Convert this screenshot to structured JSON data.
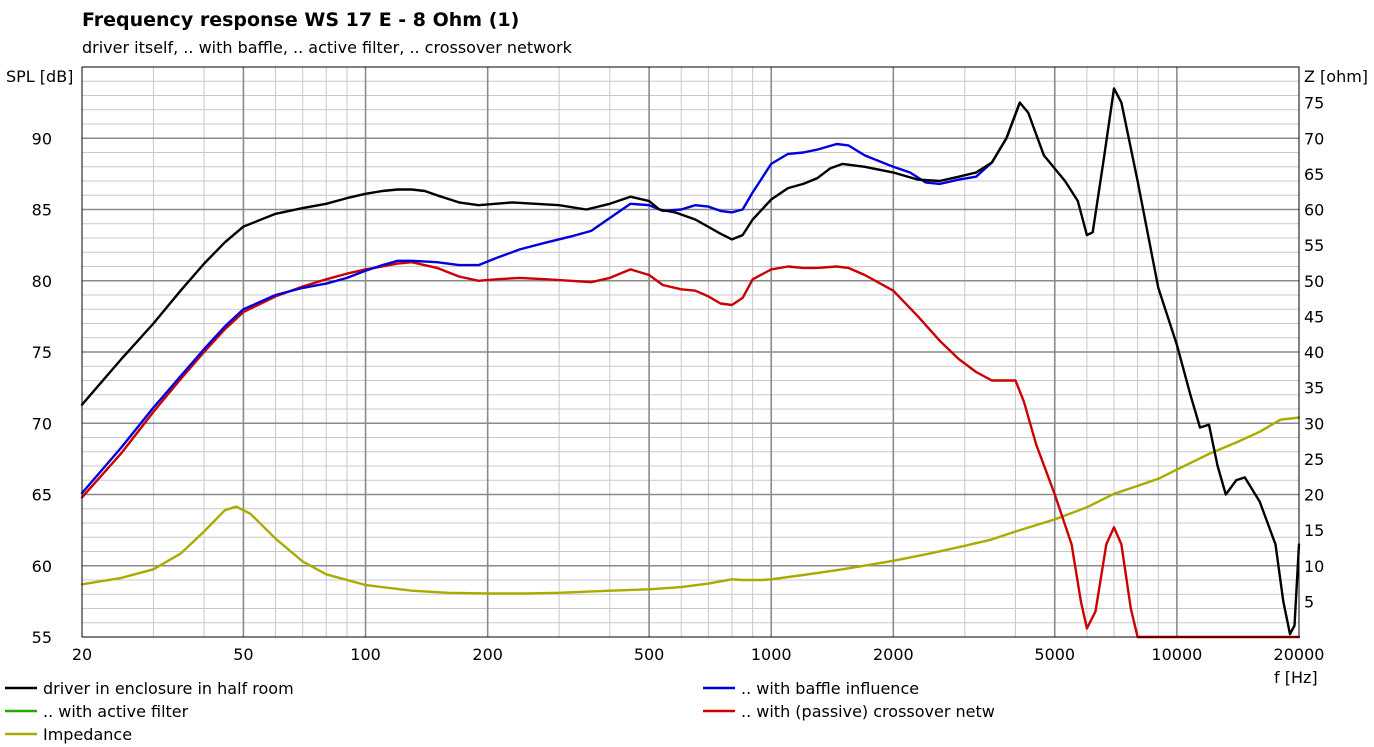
{
  "chart_data": {
    "type": "line",
    "title": "Frequency response WS 17 E - 8 Ohm   (1)",
    "subtitle": "driver itself, .. with baffle, .. active filter, .. crossover network",
    "ylabel": "SPL [dB]",
    "y2label": "Z [ohm]",
    "xlabel": "f [Hz]",
    "x_scale": "log",
    "xlim": [
      20,
      20000
    ],
    "ylim": [
      55,
      95
    ],
    "y2lim": [
      0,
      80
    ],
    "x_ticks": [
      20,
      50,
      100,
      200,
      500,
      1000,
      2000,
      5000,
      10000,
      20000
    ],
    "x_tick_labels": [
      "20",
      "50",
      "100",
      "200",
      "500",
      "1000",
      "2000",
      "5000",
      "10000",
      "20000"
    ],
    "y_ticks": [
      55,
      60,
      65,
      70,
      75,
      80,
      85,
      90
    ],
    "y_tick_labels": [
      "55",
      "60",
      "65",
      "70",
      "75",
      "80",
      "85",
      "90"
    ],
    "y2_ticks": [
      5,
      10,
      15,
      20,
      25,
      30,
      35,
      40,
      45,
      50,
      55,
      60,
      65,
      70,
      75
    ],
    "y2_tick_labels": [
      "5",
      "10",
      "15",
      "20",
      "25",
      "30",
      "35",
      "40",
      "45",
      "50",
      "55",
      "60",
      "65",
      "70",
      "75"
    ],
    "grid": true,
    "legend_position": "bottom",
    "series": [
      {
        "name": "driver in enclosure in half room",
        "color": "#000000",
        "axis": "left",
        "points": [
          [
            20,
            71.3
          ],
          [
            25,
            74.5
          ],
          [
            30,
            77
          ],
          [
            35,
            79.3
          ],
          [
            40,
            81.2
          ],
          [
            45,
            82.7
          ],
          [
            50,
            83.8
          ],
          [
            60,
            84.7
          ],
          [
            70,
            85.1
          ],
          [
            80,
            85.4
          ],
          [
            90,
            85.8
          ],
          [
            100,
            86.1
          ],
          [
            110,
            86.3
          ],
          [
            120,
            86.4
          ],
          [
            130,
            86.4
          ],
          [
            140,
            86.3
          ],
          [
            150,
            86
          ],
          [
            170,
            85.5
          ],
          [
            190,
            85.3
          ],
          [
            230,
            85.5
          ],
          [
            300,
            85.3
          ],
          [
            350,
            85
          ],
          [
            400,
            85.4
          ],
          [
            450,
            85.9
          ],
          [
            500,
            85.6
          ],
          [
            530,
            85
          ],
          [
            580,
            84.8
          ],
          [
            650,
            84.3
          ],
          [
            750,
            83.3
          ],
          [
            800,
            82.9
          ],
          [
            850,
            83.2
          ],
          [
            900,
            84.3
          ],
          [
            1000,
            85.7
          ],
          [
            1100,
            86.5
          ],
          [
            1200,
            86.8
          ],
          [
            1300,
            87.2
          ],
          [
            1400,
            87.9
          ],
          [
            1500,
            88.2
          ],
          [
            1700,
            88
          ],
          [
            2000,
            87.6
          ],
          [
            2300,
            87.1
          ],
          [
            2600,
            87
          ],
          [
            2900,
            87.3
          ],
          [
            3200,
            87.6
          ],
          [
            3500,
            88.3
          ],
          [
            3800,
            90
          ],
          [
            4100,
            92.5
          ],
          [
            4300,
            91.8
          ],
          [
            4700,
            88.8
          ],
          [
            5300,
            87
          ],
          [
            5700,
            85.6
          ],
          [
            6000,
            83.2
          ],
          [
            6200,
            83.4
          ],
          [
            6600,
            88.5
          ],
          [
            7000,
            93.5
          ],
          [
            7300,
            92.5
          ],
          [
            8000,
            87
          ],
          [
            9000,
            79.5
          ],
          [
            10000,
            75.5
          ],
          [
            10800,
            72
          ],
          [
            11400,
            69.7
          ],
          [
            12000,
            69.9
          ],
          [
            12600,
            67
          ],
          [
            13200,
            65
          ],
          [
            14000,
            66
          ],
          [
            14700,
            66.2
          ],
          [
            16000,
            64.5
          ],
          [
            17500,
            61.5
          ],
          [
            18300,
            57.5
          ],
          [
            19000,
            55.2
          ],
          [
            19500,
            55.8
          ],
          [
            20000,
            61.5
          ]
        ]
      },
      {
        "name": ".. with baffle influence",
        "color": "#0000dd",
        "axis": "left",
        "points": [
          [
            20,
            65.1
          ],
          [
            25,
            68.3
          ],
          [
            30,
            71.1
          ],
          [
            35,
            73.3
          ],
          [
            40,
            75.2
          ],
          [
            45,
            76.8
          ],
          [
            50,
            78
          ],
          [
            60,
            79
          ],
          [
            70,
            79.5
          ],
          [
            80,
            79.8
          ],
          [
            90,
            80.2
          ],
          [
            100,
            80.7
          ],
          [
            110,
            81.1
          ],
          [
            120,
            81.4
          ],
          [
            130,
            81.4
          ],
          [
            150,
            81.3
          ],
          [
            170,
            81.1
          ],
          [
            190,
            81.1
          ],
          [
            210,
            81.6
          ],
          [
            240,
            82.2
          ],
          [
            280,
            82.7
          ],
          [
            320,
            83.1
          ],
          [
            360,
            83.5
          ],
          [
            400,
            84.4
          ],
          [
            450,
            85.4
          ],
          [
            500,
            85.3
          ],
          [
            540,
            84.9
          ],
          [
            600,
            85
          ],
          [
            650,
            85.3
          ],
          [
            700,
            85.2
          ],
          [
            750,
            84.9
          ],
          [
            800,
            84.8
          ],
          [
            850,
            85
          ],
          [
            900,
            86.2
          ],
          [
            1000,
            88.2
          ],
          [
            1100,
            88.9
          ],
          [
            1200,
            89
          ],
          [
            1300,
            89.2
          ],
          [
            1450,
            89.6
          ],
          [
            1550,
            89.5
          ],
          [
            1700,
            88.8
          ],
          [
            2000,
            88
          ],
          [
            2200,
            87.6
          ],
          [
            2400,
            86.9
          ],
          [
            2600,
            86.8
          ],
          [
            2900,
            87.1
          ],
          [
            3200,
            87.3
          ],
          [
            3500,
            88.3
          ],
          [
            3800,
            90
          ],
          [
            4100,
            92.5
          ]
        ]
      },
      {
        "name": ".. with active filter",
        "color": "#22aa00",
        "axis": "left",
        "points": []
      },
      {
        "name": ".. with (passive) crossover netw",
        "color": "#cc0000",
        "axis": "left",
        "points": [
          [
            20,
            64.8
          ],
          [
            25,
            67.9
          ],
          [
            30,
            70.8
          ],
          [
            35,
            73.1
          ],
          [
            40,
            75
          ],
          [
            45,
            76.6
          ],
          [
            50,
            77.8
          ],
          [
            60,
            78.9
          ],
          [
            70,
            79.6
          ],
          [
            80,
            80.1
          ],
          [
            90,
            80.5
          ],
          [
            100,
            80.8
          ],
          [
            110,
            81
          ],
          [
            120,
            81.2
          ],
          [
            130,
            81.3
          ],
          [
            150,
            80.9
          ],
          [
            170,
            80.3
          ],
          [
            190,
            80
          ],
          [
            210,
            80.1
          ],
          [
            240,
            80.2
          ],
          [
            280,
            80.1
          ],
          [
            320,
            80
          ],
          [
            360,
            79.9
          ],
          [
            400,
            80.2
          ],
          [
            450,
            80.8
          ],
          [
            500,
            80.4
          ],
          [
            540,
            79.7
          ],
          [
            600,
            79.4
          ],
          [
            650,
            79.3
          ],
          [
            700,
            78.9
          ],
          [
            750,
            78.4
          ],
          [
            800,
            78.3
          ],
          [
            850,
            78.8
          ],
          [
            900,
            80.1
          ],
          [
            1000,
            80.8
          ],
          [
            1100,
            81
          ],
          [
            1200,
            80.9
          ],
          [
            1300,
            80.9
          ],
          [
            1450,
            81
          ],
          [
            1550,
            80.9
          ],
          [
            1700,
            80.4
          ],
          [
            2000,
            79.3
          ],
          [
            2300,
            77.5
          ],
          [
            2600,
            75.8
          ],
          [
            2900,
            74.5
          ],
          [
            3200,
            73.6
          ],
          [
            3500,
            73
          ],
          [
            3700,
            73
          ],
          [
            4000,
            73
          ],
          [
            4200,
            71.5
          ],
          [
            4500,
            68.5
          ],
          [
            5000,
            65
          ],
          [
            5500,
            61.5
          ],
          [
            5800,
            57.5
          ],
          [
            6000,
            55.6
          ],
          [
            6300,
            56.8
          ],
          [
            6700,
            61.5
          ],
          [
            7000,
            62.7
          ],
          [
            7300,
            61.5
          ],
          [
            7700,
            57
          ],
          [
            8000,
            55
          ],
          [
            20000,
            55
          ]
        ]
      },
      {
        "name": "Impedance",
        "color": "#aaaa00",
        "axis": "right",
        "points": [
          [
            20,
            7.4
          ],
          [
            25,
            8.3
          ],
          [
            30,
            9.5
          ],
          [
            35,
            11.7
          ],
          [
            40,
            14.8
          ],
          [
            45,
            17.8
          ],
          [
            48,
            18.3
          ],
          [
            52,
            17.3
          ],
          [
            60,
            13.8
          ],
          [
            70,
            10.6
          ],
          [
            80,
            8.8
          ],
          [
            100,
            7.3
          ],
          [
            130,
            6.5
          ],
          [
            160,
            6.2
          ],
          [
            200,
            6.1
          ],
          [
            250,
            6.1
          ],
          [
            300,
            6.2
          ],
          [
            400,
            6.5
          ],
          [
            500,
            6.7
          ],
          [
            600,
            7
          ],
          [
            700,
            7.5
          ],
          [
            800,
            8.1
          ],
          [
            850,
            8
          ],
          [
            950,
            8
          ],
          [
            1000,
            8.1
          ],
          [
            1200,
            8.7
          ],
          [
            1500,
            9.5
          ],
          [
            2000,
            10.7
          ],
          [
            2500,
            11.8
          ],
          [
            3000,
            12.8
          ],
          [
            3500,
            13.7
          ],
          [
            4000,
            14.8
          ],
          [
            5000,
            16.5
          ],
          [
            6000,
            18.2
          ],
          [
            7000,
            20.1
          ],
          [
            8000,
            21.2
          ],
          [
            9000,
            22.2
          ],
          [
            10000,
            23.5
          ],
          [
            12000,
            25.7
          ],
          [
            14000,
            27.3
          ],
          [
            16000,
            28.8
          ],
          [
            18000,
            30.5
          ],
          [
            20000,
            30.8
          ]
        ]
      }
    ]
  }
}
